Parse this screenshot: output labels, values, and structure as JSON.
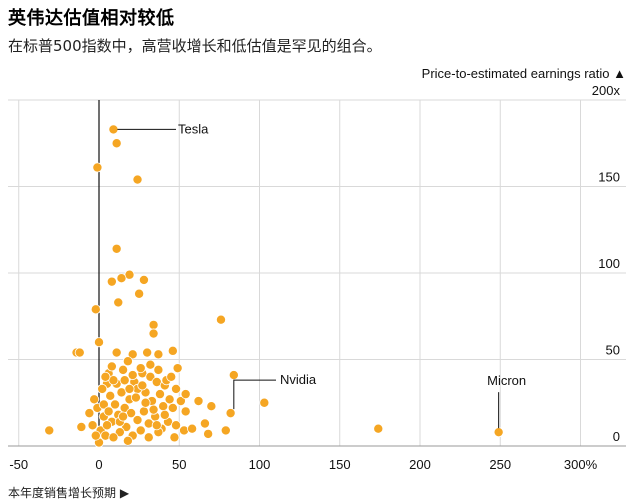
{
  "title": "英伟达估值相对较低",
  "subtitle": "在标普500指数中，高营收增长和低估值是罕见的组合。",
  "chart_data": {
    "type": "scatter",
    "ylabel": "Price-to-estimated earnings ratio ▲",
    "xlabel": "本年度销售增长预期 ▶",
    "xlim": [
      -50,
      320
    ],
    "ylim": [
      0,
      200
    ],
    "x_ticks": [
      -50,
      0,
      50,
      100,
      150,
      200,
      250,
      300
    ],
    "x_tick_labels": [
      "-50",
      "0",
      "50",
      "100",
      "150",
      "200",
      "250",
      "300%"
    ],
    "y_ticks": [
      0,
      50,
      100,
      150,
      200
    ],
    "y_tick_labels": [
      "0",
      "50",
      "100",
      "150",
      "200x"
    ],
    "grid": true,
    "point_color": "#F5A623",
    "annotations": [
      {
        "label": "Tesla",
        "x": 9,
        "y": 183
      },
      {
        "label": "Nvidia",
        "x": 84,
        "y": 19
      },
      {
        "label": "Micron",
        "x": 249,
        "y": 8
      }
    ],
    "points": [
      [
        9,
        183
      ],
      [
        11,
        175
      ],
      [
        -1,
        161
      ],
      [
        24,
        154
      ],
      [
        11,
        114
      ],
      [
        19,
        99
      ],
      [
        14,
        97
      ],
      [
        28,
        96
      ],
      [
        8,
        95
      ],
      [
        25,
        88
      ],
      [
        12,
        83
      ],
      [
        -2,
        79
      ],
      [
        34,
        70
      ],
      [
        34,
        65
      ],
      [
        76,
        73
      ],
      [
        0,
        60
      ],
      [
        -14,
        54
      ],
      [
        -12,
        54
      ],
      [
        11,
        54
      ],
      [
        21,
        53
      ],
      [
        30,
        54
      ],
      [
        37,
        53
      ],
      [
        46,
        55
      ],
      [
        84,
        41
      ],
      [
        103,
        25
      ],
      [
        82,
        19
      ],
      [
        174,
        10
      ],
      [
        249,
        8
      ],
      [
        -31,
        9
      ],
      [
        -11,
        11
      ],
      [
        -4,
        12
      ],
      [
        -1,
        22
      ],
      [
        3,
        17
      ],
      [
        5,
        36
      ],
      [
        6,
        42
      ],
      [
        8,
        46
      ],
      [
        15,
        44
      ],
      [
        18,
        49
      ],
      [
        22,
        37
      ],
      [
        27,
        42
      ],
      [
        32,
        40
      ],
      [
        36,
        37
      ],
      [
        41,
        35
      ],
      [
        38,
        30
      ],
      [
        33,
        26
      ],
      [
        29,
        31
      ],
      [
        24,
        33
      ],
      [
        19,
        27
      ],
      [
        14,
        31
      ],
      [
        10,
        24
      ],
      [
        7,
        29
      ],
      [
        2,
        33
      ],
      [
        -3,
        27
      ],
      [
        -6,
        19
      ],
      [
        1,
        9
      ],
      [
        4,
        6
      ],
      [
        8,
        14
      ],
      [
        12,
        18
      ],
      [
        16,
        22
      ],
      [
        20,
        19
      ],
      [
        24,
        15
      ],
      [
        28,
        20
      ],
      [
        31,
        13
      ],
      [
        35,
        17
      ],
      [
        39,
        10
      ],
      [
        43,
        14
      ],
      [
        46,
        22
      ],
      [
        48,
        12
      ],
      [
        44,
        27
      ],
      [
        40,
        23
      ],
      [
        37,
        8
      ],
      [
        31,
        5
      ],
      [
        26,
        9
      ],
      [
        21,
        6
      ],
      [
        17,
        11
      ],
      [
        13,
        8
      ],
      [
        9,
        5
      ],
      [
        5,
        12
      ],
      [
        3,
        24
      ],
      [
        6,
        20
      ],
      [
        11,
        36
      ],
      [
        16,
        38
      ],
      [
        21,
        41
      ],
      [
        26,
        45
      ],
      [
        32,
        47
      ],
      [
        37,
        44
      ],
      [
        42,
        38
      ],
      [
        48,
        33
      ],
      [
        51,
        26
      ],
      [
        47,
        5
      ],
      [
        53,
        9
      ],
      [
        54,
        20
      ],
      [
        62,
        26
      ],
      [
        58,
        10
      ],
      [
        68,
        7
      ],
      [
        70,
        23
      ],
      [
        54,
        30
      ],
      [
        66,
        13
      ],
      [
        79,
        9
      ],
      [
        49,
        45
      ],
      [
        45,
        40
      ],
      [
        29,
        25
      ],
      [
        13,
        14
      ],
      [
        18,
        3
      ],
      [
        0,
        2
      ],
      [
        -2,
        6
      ],
      [
        23,
        28
      ],
      [
        15,
        17
      ],
      [
        34,
        21
      ],
      [
        41,
        18
      ],
      [
        9,
        38
      ],
      [
        4,
        40
      ],
      [
        27,
        35
      ],
      [
        36,
        12
      ],
      [
        19,
        33
      ]
    ]
  }
}
